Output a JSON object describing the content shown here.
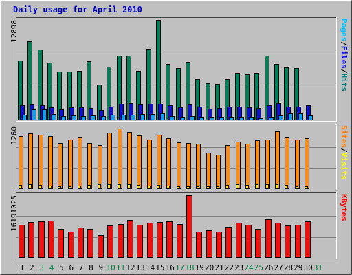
{
  "chart_data": {
    "type": "bar",
    "title": "Daily usage for April 2010",
    "categories": [
      "1",
      "2",
      "3",
      "4",
      "5",
      "6",
      "7",
      "8",
      "9",
      "10",
      "11",
      "12",
      "13",
      "14",
      "15",
      "16",
      "17",
      "18",
      "19",
      "20",
      "21",
      "22",
      "23",
      "24",
      "25",
      "26",
      "27",
      "28",
      "29",
      "30",
      "31"
    ],
    "weekend_days": [
      "3",
      "4",
      "10",
      "11",
      "17",
      "18",
      "24",
      "25",
      "31"
    ],
    "panels": [
      {
        "name": "pages-files-hits",
        "axis_max_label": "12898",
        "ymax": 12898,
        "right_label": {
          "parts": [
            "Pages",
            "/",
            "Files",
            "/",
            "Hits"
          ],
          "colors": [
            "#00c0ff",
            "#000000",
            "#0000ff",
            "#000000",
            "#008080"
          ]
        },
        "series": [
          {
            "name": "Hits",
            "color": "#00805a",
            "values": [
              7700,
              10200,
              9100,
              7400,
              6300,
              6300,
              6400,
              7600,
              4600,
              6900,
              8300,
              8300,
              6400,
              9200,
              12898,
              7200,
              6700,
              7500,
              5300,
              4800,
              4700,
              5300,
              6100,
              5900,
              6100,
              8300,
              7200,
              6800,
              6700,
              null,
              null
            ]
          },
          {
            "name": "Files",
            "color": "#1010d0",
            "values": [
              1900,
              2000,
              1900,
              1700,
              1400,
              1700,
              1700,
              1600,
              1300,
              1800,
              2100,
              2200,
              2000,
              2100,
              2100,
              1900,
              1700,
              2000,
              1800,
              1500,
              1600,
              1800,
              1800,
              1700,
              1600,
              1900,
              2200,
              1800,
              1800,
              1900,
              null
            ]
          },
          {
            "name": "Pages",
            "color": "#10a0f0",
            "values": [
              700,
              1400,
              1400,
              800,
              500,
              600,
              500,
              600,
              500,
              700,
              700,
              700,
              800,
              800,
              900,
              500,
              400,
              500,
              400,
              400,
              400,
              400,
              400,
              400,
              300,
              400,
              600,
              900,
              900,
              600,
              null
            ]
          }
        ]
      },
      {
        "name": "visits-sites",
        "axis_max_label": "1260",
        "ymax": 1260,
        "right_label": {
          "parts": [
            "Sites",
            "/",
            "Visits"
          ],
          "colors": [
            "#ff8000",
            "#000000",
            "#ffff00"
          ]
        },
        "series": [
          {
            "name": "Visits",
            "color": "#ff8c10",
            "values": [
              1070,
              1120,
              1090,
              1060,
              930,
              990,
              1040,
              930,
              880,
              1140,
              1220,
              1150,
              1080,
              990,
              1090,
              1020,
              940,
              930,
              920,
              740,
              690,
              890,
              960,
              920,
              980,
              1000,
              1160,
              1040,
              1000,
              1020,
              null
            ]
          },
          {
            "name": "Sites",
            "color": "#f8e800",
            "values": [
              80,
              90,
              80,
              70,
              60,
              60,
              70,
              80,
              90,
              90,
              100,
              90,
              80,
              70,
              80,
              70,
              60,
              60,
              60,
              50,
              60,
              80,
              90,
              80,
              90,
              100,
              90,
              80,
              60,
              60,
              null
            ]
          }
        ]
      },
      {
        "name": "kbytes",
        "axis_max_label": "16191025",
        "ymax": 16191025,
        "right_label": {
          "parts": [
            "KBytes"
          ],
          "colors": [
            "#ff0000"
          ]
        },
        "series": [
          {
            "name": "KBytes",
            "color": "#f01010",
            "values": [
              8600,
              9200,
              9500,
              9600,
              7400,
              6700,
              7800,
              7500,
              5800,
              8400,
              8700,
              9700,
              8500,
              9000,
              9300,
              9400,
              8700,
              16191,
              6700,
              7200,
              6800,
              8000,
              9000,
              8600,
              7400,
              10000,
              9000,
              8400,
              8600,
              9500,
              null
            ]
          }
        ]
      }
    ]
  }
}
